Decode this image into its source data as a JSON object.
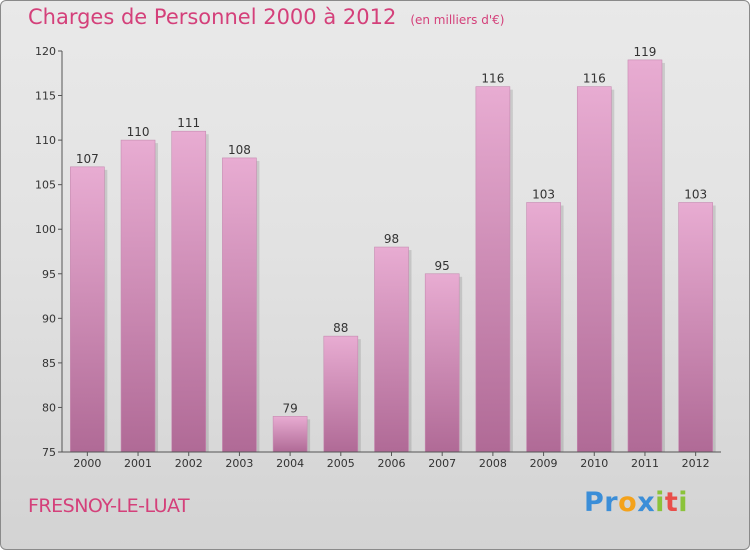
{
  "title": "Charges de Personnel 2000 à 2012",
  "subtitle": "(en milliers d'€)",
  "place": "FRESNOY-LE-LUAT",
  "logo": {
    "letters": [
      "P",
      "r",
      "o",
      "x",
      "i",
      "t",
      "i"
    ],
    "colors": [
      "#3b8ed8",
      "#3b8ed8",
      "#f4a21b",
      "#3b8ed8",
      "#8bc33a",
      "#e94e4a",
      "#8bc33a"
    ]
  },
  "colors": {
    "bar_top": "#e8acd2",
    "bar_bottom": "#b06a96",
    "text_accent": "#d4407a"
  },
  "chart_data": {
    "type": "bar",
    "categories": [
      "2000",
      "2001",
      "2002",
      "2003",
      "2004",
      "2005",
      "2006",
      "2007",
      "2008",
      "2009",
      "2010",
      "2011",
      "2012"
    ],
    "values": [
      107,
      110,
      111,
      108,
      79,
      88,
      98,
      95,
      116,
      103,
      116,
      119,
      103
    ],
    "ylim": [
      75,
      120
    ],
    "yticks": [
      75,
      80,
      85,
      90,
      95,
      100,
      105,
      110,
      115,
      120
    ],
    "grid": false
  }
}
